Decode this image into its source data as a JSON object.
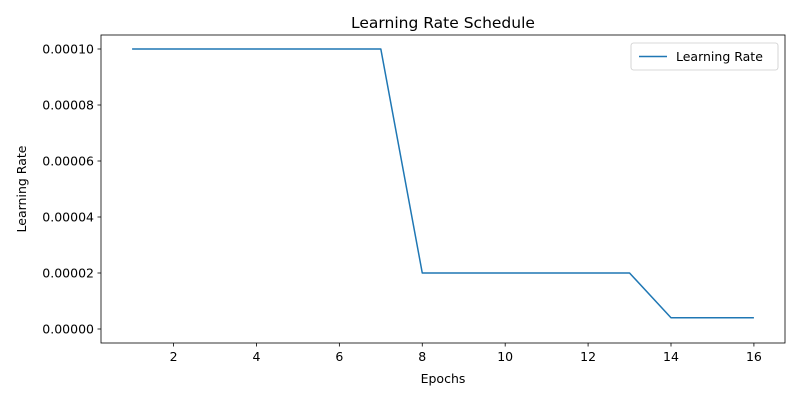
{
  "chart_data": {
    "type": "line",
    "title": "Learning Rate Schedule",
    "xlabel": "Epochs",
    "ylabel": "Learning Rate",
    "xlim": [
      0.25,
      16.75
    ],
    "ylim": [
      -5e-06,
      0.000105
    ],
    "xticks": [
      2,
      4,
      6,
      8,
      10,
      12,
      14,
      16
    ],
    "xtick_labels": [
      "2",
      "4",
      "6",
      "8",
      "10",
      "12",
      "14",
      "16"
    ],
    "yticks": [
      0.0,
      2e-05,
      4e-05,
      6e-05,
      8e-05,
      0.0001
    ],
    "ytick_labels": [
      "0.00000",
      "0.00002",
      "0.00004",
      "0.00006",
      "0.00008",
      "0.00010"
    ],
    "grid": false,
    "legend_position": "top-right",
    "series": [
      {
        "name": "Learning Rate",
        "color": "#1f77b4",
        "x": [
          1,
          2,
          3,
          4,
          5,
          6,
          7,
          8,
          9,
          10,
          11,
          12,
          13,
          14,
          15,
          16
        ],
        "y": [
          0.0001,
          0.0001,
          0.0001,
          0.0001,
          0.0001,
          0.0001,
          0.0001,
          2e-05,
          2e-05,
          2e-05,
          2e-05,
          2e-05,
          2e-05,
          4e-06,
          4e-06,
          4e-06
        ]
      }
    ]
  }
}
